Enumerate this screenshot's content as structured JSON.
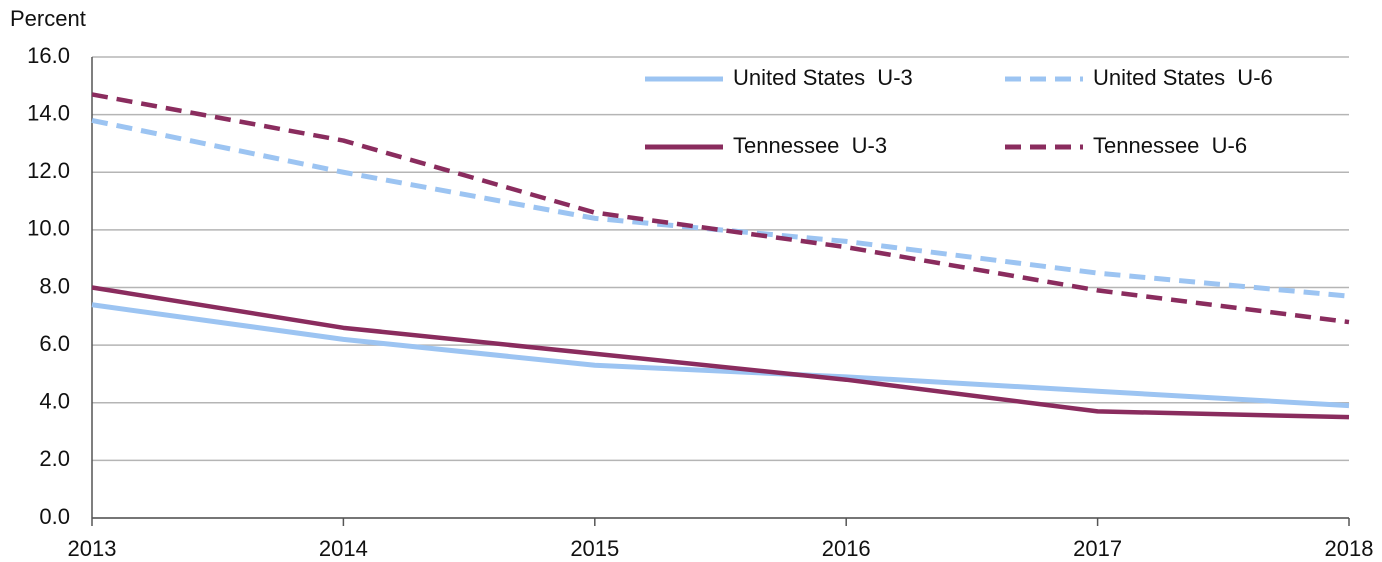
{
  "chart_data": {
    "type": "line",
    "y_label": "Percent",
    "x": [
      2013,
      2014,
      2015,
      2016,
      2017,
      2018
    ],
    "xlim": [
      2013,
      2018
    ],
    "xticks": [
      2013,
      2014,
      2015,
      2016,
      2017,
      2018
    ],
    "ylim": [
      0,
      16
    ],
    "yticks": [
      {
        "value": 0,
        "label": "0.0"
      },
      {
        "value": 2,
        "label": "2.0"
      },
      {
        "value": 4,
        "label": "4.0"
      },
      {
        "value": 6,
        "label": "6.0"
      },
      {
        "value": 8,
        "label": "8.0"
      },
      {
        "value": 10,
        "label": "10.0"
      },
      {
        "value": 12,
        "label": "12.0"
      },
      {
        "value": 14,
        "label": "14.0"
      },
      {
        "value": 16,
        "label": "16.0"
      }
    ],
    "grid": true,
    "legend": "upper right",
    "series": [
      {
        "name": "United States  U-3",
        "color": "#9cc4f2",
        "style": "solid",
        "values": [
          7.4,
          6.2,
          5.3,
          4.9,
          4.4,
          3.9
        ]
      },
      {
        "name": "United States  U-6",
        "color": "#9cc4f2",
        "style": "dashed",
        "values": [
          13.8,
          12.0,
          10.4,
          9.6,
          8.5,
          7.7
        ]
      },
      {
        "name": "Tennessee  U-3",
        "color": "#8a2c5e",
        "style": "solid",
        "values": [
          8.0,
          6.6,
          5.7,
          4.8,
          3.7,
          3.5
        ]
      },
      {
        "name": "Tennessee  U-6",
        "color": "#8a2c5e",
        "style": "dashed",
        "values": [
          14.7,
          13.1,
          10.6,
          9.4,
          7.9,
          6.8
        ]
      }
    ]
  }
}
